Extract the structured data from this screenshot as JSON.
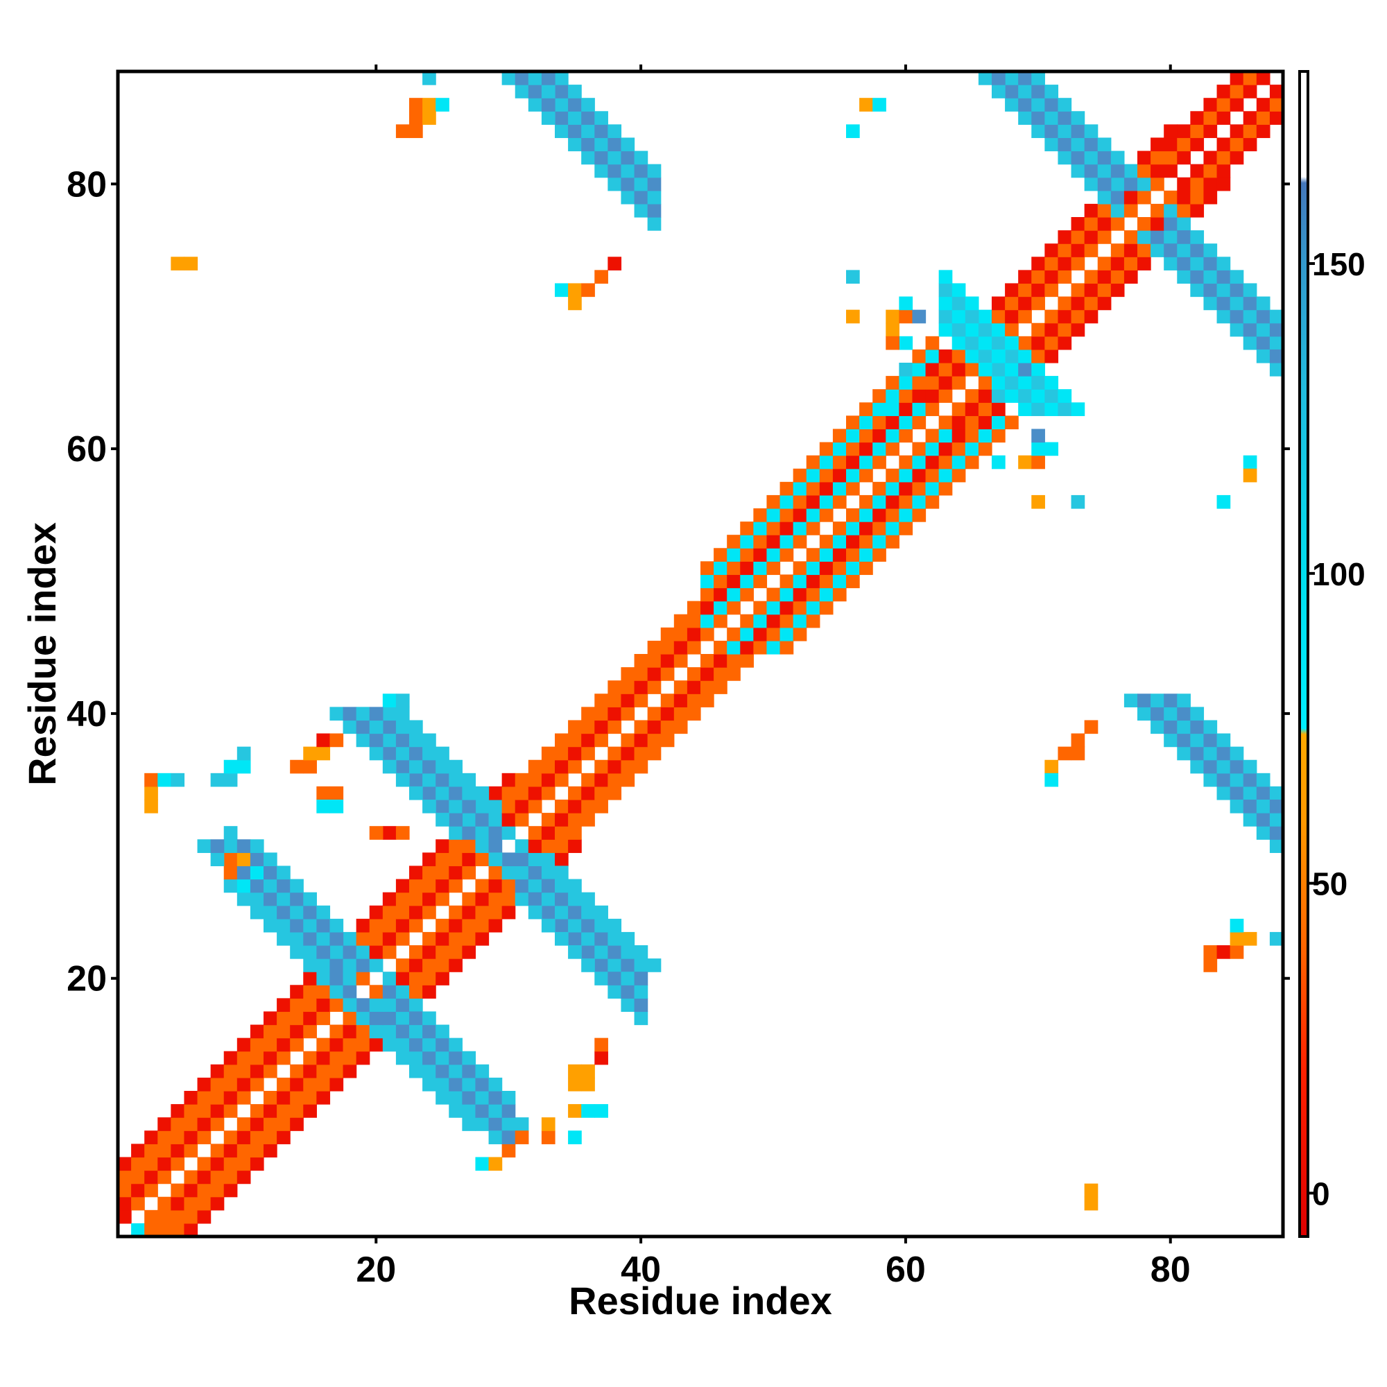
{
  "chart_data": {
    "type": "heatmap",
    "title": "",
    "xlabel": "Residue index",
    "ylabel": "Residue index",
    "xlim": [
      0.5,
      88.5
    ],
    "ylim": [
      0.5,
      88.5
    ],
    "x_ticks": [
      20,
      40,
      60,
      80
    ],
    "y_ticks": [
      20,
      40,
      60,
      80
    ],
    "grid": false,
    "colorbar": {
      "range": [
        -7,
        181
      ],
      "ticks": [
        0,
        50,
        100,
        150
      ],
      "stops": [
        {
          "value": -7,
          "color": "#dd0000"
        },
        {
          "value": 20,
          "color": "#ff2200"
        },
        {
          "value": 40,
          "color": "#ff6600"
        },
        {
          "value": 60,
          "color": "#ff9900"
        },
        {
          "value": 74,
          "color": "#ffaa00"
        },
        {
          "value": 75,
          "color": "#00eeff"
        },
        {
          "value": 100,
          "color": "#00ddee"
        },
        {
          "value": 130,
          "color": "#22bbdd"
        },
        {
          "value": 150,
          "color": "#3399cc"
        },
        {
          "value": 163,
          "color": "#4477bb"
        },
        {
          "value": 164,
          "color": "#ffffff"
        },
        {
          "value": 181,
          "color": "#ffffff"
        }
      ]
    },
    "palette": {
      "R": "#ee1100",
      "O": "#ff6600",
      "Y": "#ffa000",
      "C": "#00e6f6",
      "T": "#26c6e0",
      "B": "#4a8ec8"
    },
    "diagonal_bands": [
      {
        "a": 1,
        "b": 30,
        "offsets": [
          1,
          2,
          3,
          4,
          5
        ],
        "colors": [
          "O",
          "R",
          "O",
          "O",
          "R"
        ]
      },
      {
        "a": 30,
        "b": 45,
        "offsets": [
          1,
          2,
          3,
          4
        ],
        "colors": [
          "O",
          "R",
          "O",
          "O"
        ]
      },
      {
        "a": 45,
        "b": 62,
        "offsets": [
          1,
          2,
          3,
          4,
          5,
          6
        ],
        "colors": [
          "O",
          "C",
          "R",
          "O",
          "C",
          "O"
        ]
      },
      {
        "a": 62,
        "b": 80,
        "offsets": [
          1,
          2,
          3,
          4
        ],
        "colors": [
          "O",
          "R",
          "O",
          "R"
        ]
      },
      {
        "a": 80,
        "b": 88,
        "offsets": [
          1,
          2,
          3
        ],
        "colors": [
          "R",
          "O",
          "R"
        ]
      }
    ],
    "anti_bands": [
      {
        "s": 38,
        "from": 9,
        "to": 18,
        "w": 2,
        "colors": [
          "T",
          "B",
          "T"
        ]
      },
      {
        "s": 39,
        "from": 21,
        "to": 30,
        "w": 2,
        "colors": [
          "T",
          "B",
          "T"
        ]
      },
      {
        "s": 60,
        "from": 21,
        "to": 29,
        "w": 2,
        "colors": [
          "T",
          "B",
          "T"
        ]
      },
      {
        "s": 59,
        "from": 31,
        "to": 40,
        "w": 2,
        "colors": [
          "T",
          "B",
          "T"
        ]
      },
      {
        "s": 156,
        "from": 68,
        "to": 76,
        "w": 2,
        "colors": [
          "T",
          "B",
          "T"
        ]
      },
      {
        "s": 156,
        "from": 80,
        "to": 88,
        "w": 2,
        "colors": [
          "T",
          "B",
          "T"
        ]
      },
      {
        "s": 120,
        "from": 34,
        "to": 41,
        "w": 2,
        "colors": [
          "T",
          "B",
          "T"
        ]
      },
      {
        "s": 120,
        "from": 81,
        "to": 88,
        "w": 2,
        "colors": [
          "T",
          "B",
          "T"
        ]
      },
      {
        "s": 134,
        "from": 63,
        "to": 69,
        "w": 2,
        "colors": [
          "C",
          "T",
          "C"
        ]
      }
    ],
    "cells": [
      [
        2,
        1,
        "C"
      ],
      [
        3,
        1,
        "O"
      ],
      [
        1,
        2,
        "R"
      ],
      [
        4,
        2,
        "O"
      ],
      [
        3,
        33,
        "Y"
      ],
      [
        3,
        34,
        "Y"
      ],
      [
        3,
        35,
        "O"
      ],
      [
        4,
        35,
        "C"
      ],
      [
        5,
        35,
        "T"
      ],
      [
        8,
        35,
        "T"
      ],
      [
        9,
        35,
        "T"
      ],
      [
        9,
        36,
        "C"
      ],
      [
        10,
        36,
        "C"
      ],
      [
        10,
        37,
        "T"
      ],
      [
        9,
        28,
        "O"
      ],
      [
        9,
        29,
        "O"
      ],
      [
        10,
        29,
        "Y"
      ],
      [
        11,
        28,
        "C"
      ],
      [
        10,
        27,
        "C"
      ],
      [
        14,
        36,
        "O"
      ],
      [
        15,
        36,
        "O"
      ],
      [
        15,
        37,
        "Y"
      ],
      [
        16,
        37,
        "Y"
      ],
      [
        16,
        38,
        "R"
      ],
      [
        17,
        38,
        "O"
      ],
      [
        16,
        34,
        "O"
      ],
      [
        17,
        34,
        "O"
      ],
      [
        16,
        33,
        "C"
      ],
      [
        17,
        33,
        "C"
      ],
      [
        21,
        41,
        "C"
      ],
      [
        22,
        41,
        "T"
      ],
      [
        21,
        31,
        "R"
      ],
      [
        22,
        31,
        "O"
      ],
      [
        20,
        31,
        "O"
      ],
      [
        23,
        85,
        "O"
      ],
      [
        23,
        86,
        "O"
      ],
      [
        22,
        84,
        "O"
      ],
      [
        23,
        84,
        "O"
      ],
      [
        24,
        88,
        "T"
      ],
      [
        24,
        86,
        "Y"
      ],
      [
        25,
        86,
        "C"
      ],
      [
        24,
        85,
        "Y"
      ],
      [
        34,
        72,
        "C"
      ],
      [
        35,
        72,
        "Y"
      ],
      [
        35,
        71,
        "Y"
      ],
      [
        36,
        72,
        "O"
      ],
      [
        37,
        73,
        "O"
      ],
      [
        38,
        74,
        "R"
      ],
      [
        5,
        74,
        "Y"
      ],
      [
        6,
        74,
        "Y"
      ],
      [
        56,
        84,
        "C"
      ],
      [
        57,
        86,
        "Y"
      ],
      [
        58,
        86,
        "C"
      ],
      [
        56,
        70,
        "Y"
      ],
      [
        56,
        73,
        "T"
      ],
      [
        59,
        70,
        "Y"
      ],
      [
        59,
        69,
        "Y"
      ],
      [
        60,
        70,
        "O"
      ],
      [
        60,
        68,
        "C"
      ],
      [
        60,
        71,
        "C"
      ],
      [
        61,
        70,
        "B"
      ],
      [
        59,
        68,
        "O"
      ],
      [
        67,
        59,
        "C"
      ],
      [
        69,
        59,
        "Y"
      ],
      [
        70,
        59,
        "O"
      ],
      [
        70,
        60,
        "C"
      ],
      [
        71,
        60,
        "C"
      ],
      [
        70,
        61,
        "B"
      ],
      [
        70,
        56,
        "Y"
      ],
      [
        73,
        56,
        "T"
      ],
      [
        84,
        56,
        "C"
      ],
      [
        86,
        59,
        "C"
      ],
      [
        86,
        58,
        "Y"
      ],
      [
        71,
        36,
        "Y"
      ],
      [
        71,
        35,
        "C"
      ],
      [
        72,
        37,
        "O"
      ],
      [
        73,
        37,
        "O"
      ],
      [
        73,
        38,
        "O"
      ],
      [
        74,
        39,
        "O"
      ],
      [
        74,
        3,
        "Y"
      ],
      [
        74,
        4,
        "Y"
      ],
      [
        83,
        21,
        "O"
      ],
      [
        83,
        22,
        "O"
      ],
      [
        84,
        22,
        "R"
      ],
      [
        85,
        22,
        "O"
      ],
      [
        86,
        23,
        "Y"
      ],
      [
        85,
        23,
        "Y"
      ],
      [
        85,
        24,
        "C"
      ],
      [
        88,
        23,
        "T"
      ],
      [
        33,
        8,
        "O"
      ],
      [
        31,
        8,
        "O"
      ],
      [
        35,
        8,
        "C"
      ],
      [
        33,
        9,
        "Y"
      ],
      [
        35,
        10,
        "Y"
      ],
      [
        36,
        10,
        "C"
      ],
      [
        37,
        10,
        "C"
      ],
      [
        35,
        12,
        "Y"
      ],
      [
        36,
        12,
        "Y"
      ],
      [
        35,
        13,
        "Y"
      ],
      [
        36,
        13,
        "Y"
      ],
      [
        37,
        14,
        "R"
      ],
      [
        37,
        15,
        "O"
      ],
      [
        28,
        6,
        "C"
      ],
      [
        29,
        6,
        "Y"
      ],
      [
        30,
        7,
        "O"
      ],
      [
        67,
        64,
        "T"
      ],
      [
        68,
        64,
        "C"
      ],
      [
        69,
        66,
        "B"
      ],
      [
        60,
        66,
        "T"
      ],
      [
        59,
        63,
        "C"
      ]
    ]
  }
}
